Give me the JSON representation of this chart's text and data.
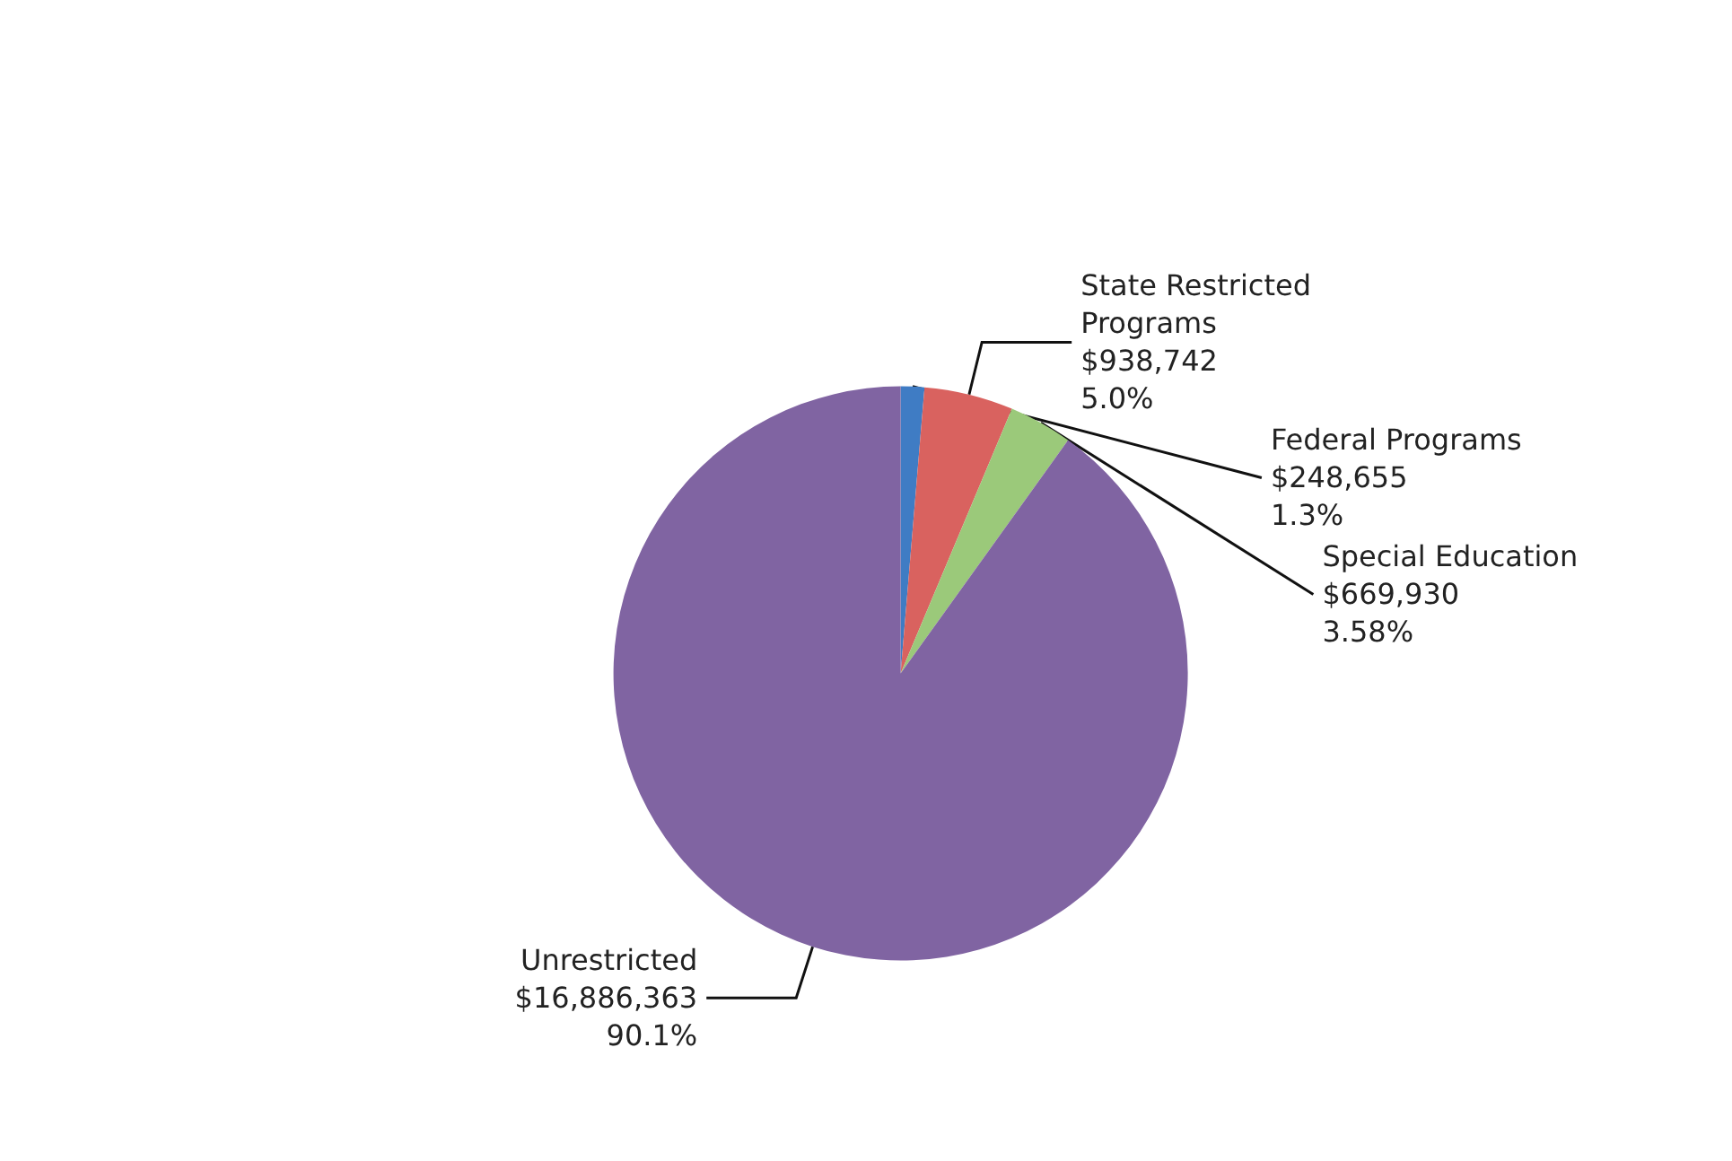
{
  "chart_data": {
    "type": "pie",
    "categories": [
      "Federal Programs",
      "State Restricted Programs",
      "Special Education",
      "Unrestricted"
    ],
    "values": [
      248655,
      938742,
      669930,
      16886363
    ],
    "colors": [
      "#3f7cc4",
      "#d9625f",
      "#9bc97a",
      "#8064a2"
    ],
    "value_labels": [
      "$248,655\n1.3%",
      "$938,742\n5.0%",
      "$669,930\n3.58%",
      "$16,886,363\n90.1%"
    ],
    "legend": false
  }
}
